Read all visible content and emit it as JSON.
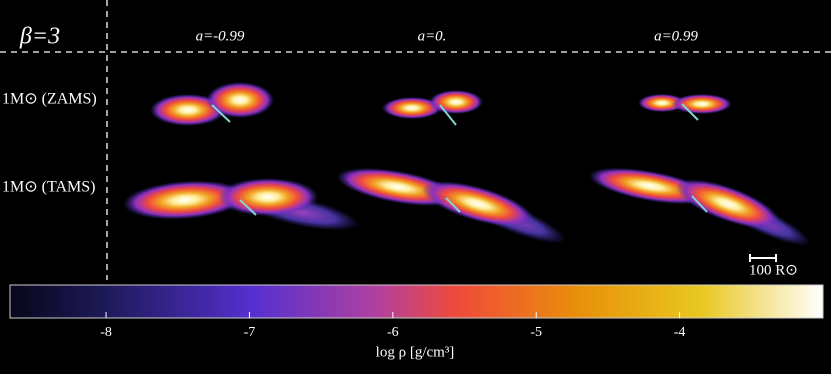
{
  "header": {
    "beta": "β=3",
    "columns": [
      "a=-0.99",
      "a=0.",
      "a=0.99"
    ]
  },
  "rows": [
    "1M⊙ (ZAMS)",
    "1M⊙ (TAMS)"
  ],
  "scale_bar": "100 R⊙",
  "colorbar": {
    "label": "log ρ [g/cm³]",
    "lim": [
      -8.67,
      -3.0
    ],
    "ticks": [
      -8,
      -7,
      -6,
      -5,
      -4
    ]
  }
}
